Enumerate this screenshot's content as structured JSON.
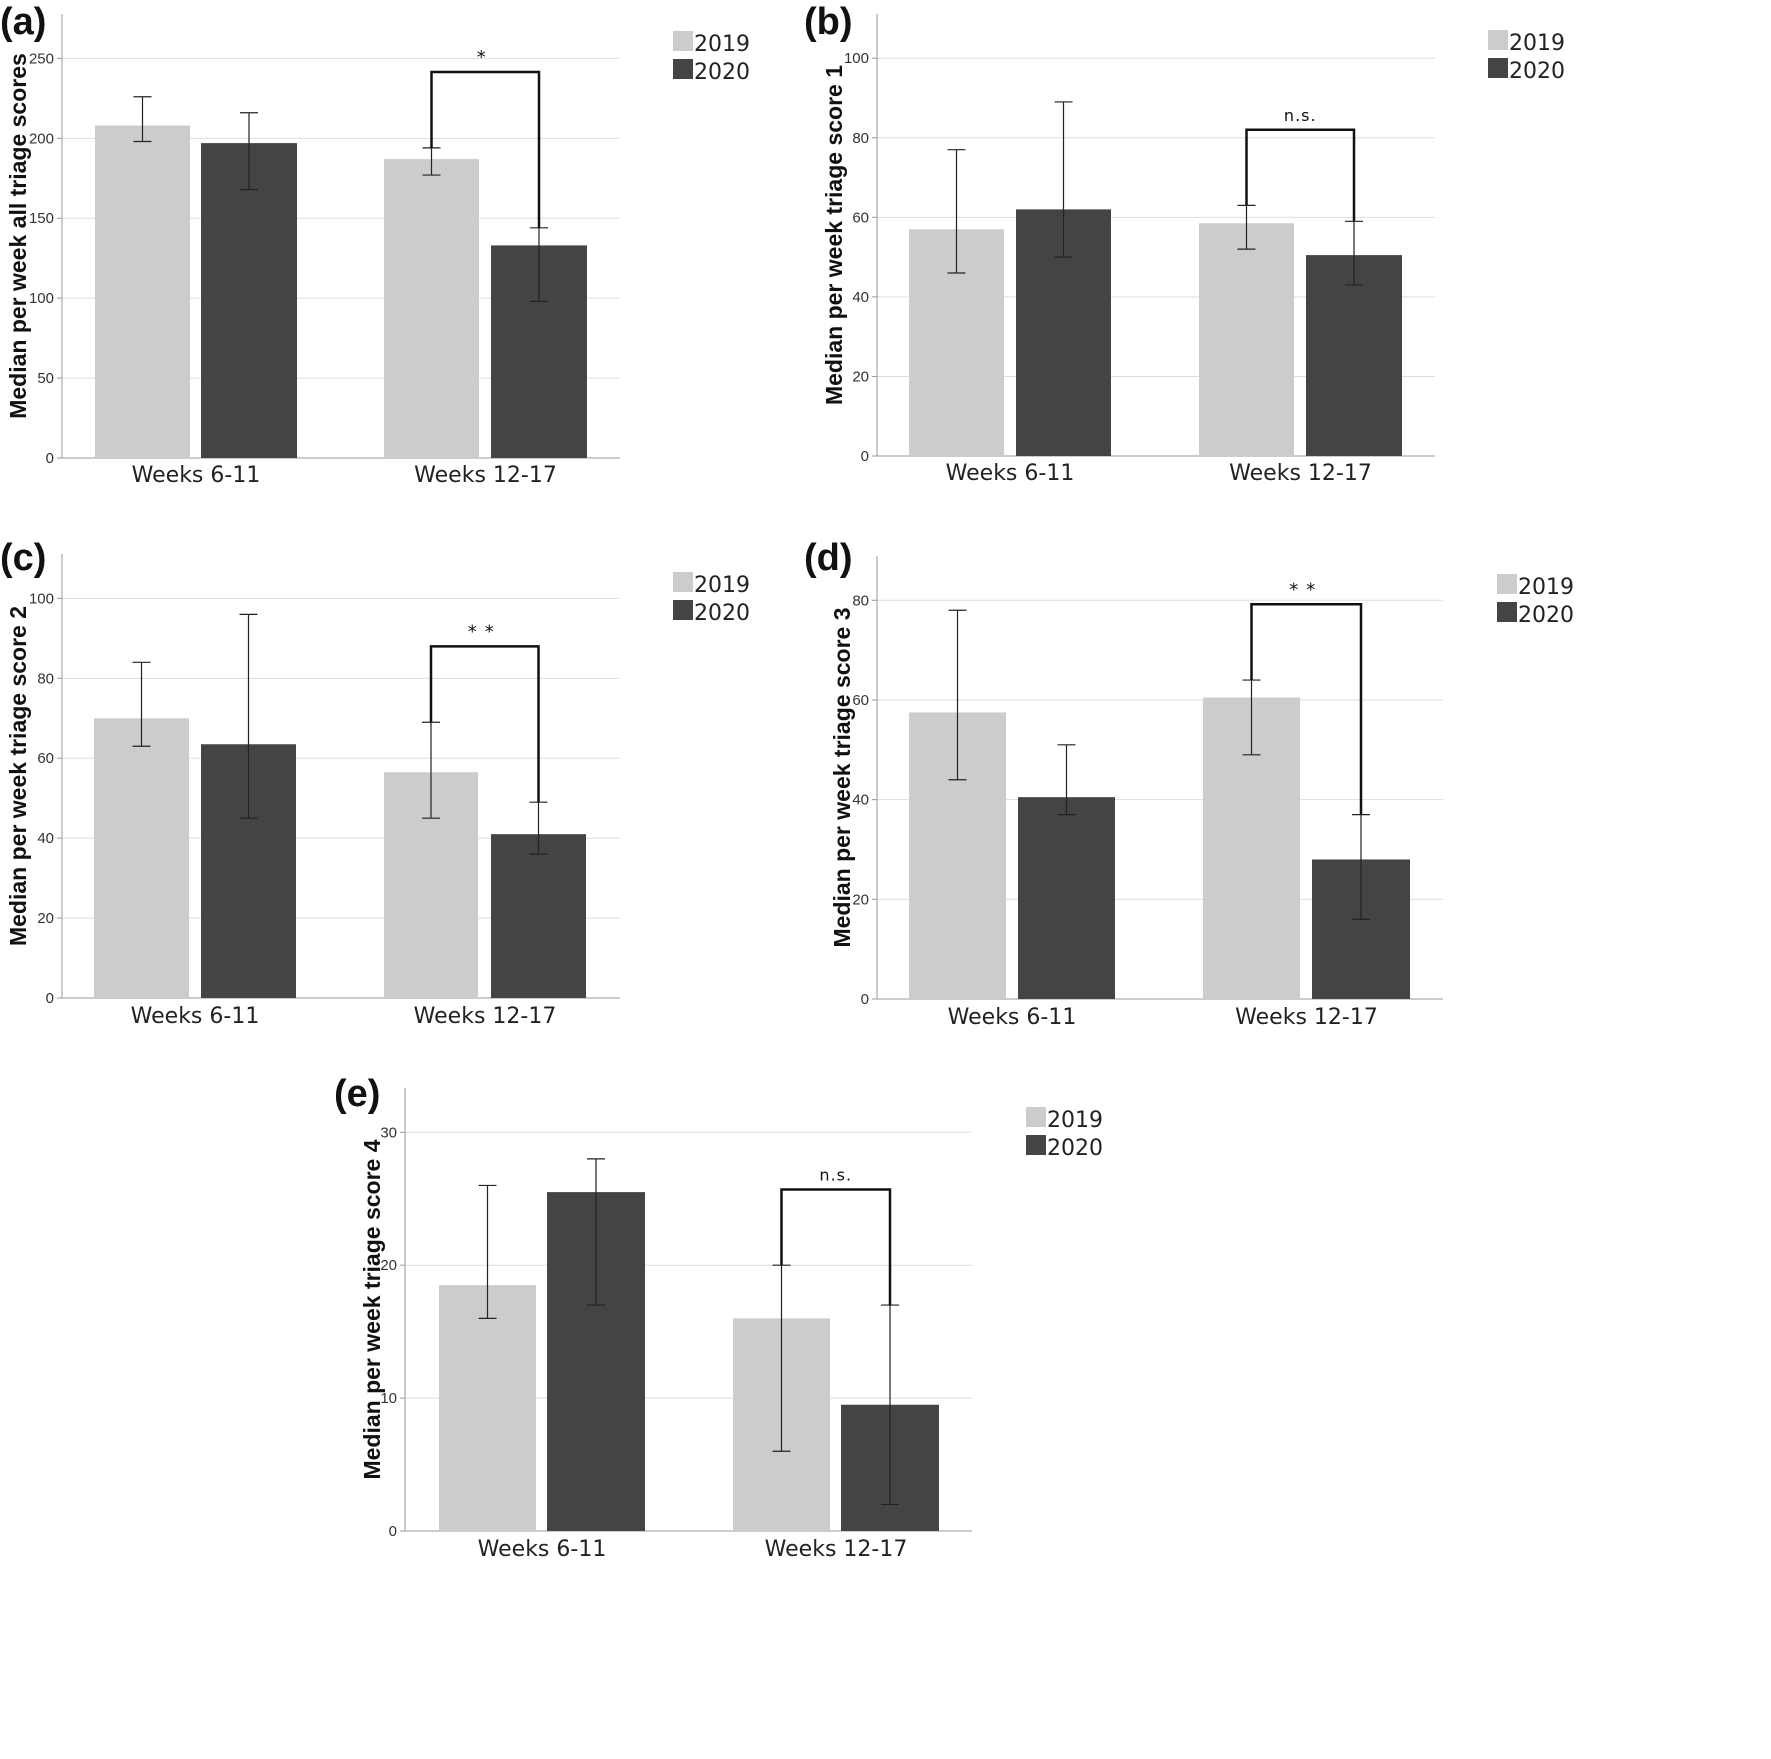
{
  "legend_labels": [
    "2019",
    "2020"
  ],
  "colors": {
    "2019": "#cccccc",
    "2020": "#444444",
    "grid": "#dddddd",
    "axis": "#999999"
  },
  "chart_data": [
    {
      "panel": "(a)",
      "type": "bar",
      "ylabel": "Median per week all triage scores",
      "categories": [
        "Weeks 6-11",
        "Weeks 12-17"
      ],
      "ylim": [
        0,
        250
      ],
      "yticks": [
        0,
        50,
        100,
        150,
        200,
        250
      ],
      "series": [
        {
          "name": "2019",
          "values": [
            208,
            187
          ],
          "error_low": [
            198,
            177
          ],
          "error_high": [
            226,
            194
          ]
        },
        {
          "name": "2020",
          "values": [
            197,
            133
          ],
          "error_low": [
            168,
            98
          ],
          "error_high": [
            216,
            144
          ]
        }
      ],
      "significance": {
        "category": "Weeks 12-17",
        "label": "*"
      },
      "grid": true,
      "legend": "top-right"
    },
    {
      "panel": "(b)",
      "type": "bar",
      "ylabel": "Median per week triage score 1",
      "categories": [
        "Weeks 6-11",
        "Weeks 12-17"
      ],
      "ylim": [
        0,
        100
      ],
      "yticks": [
        0,
        20,
        40,
        60,
        80,
        100
      ],
      "series": [
        {
          "name": "2019",
          "values": [
            57,
            58.5
          ],
          "error_low": [
            46,
            52
          ],
          "error_high": [
            77,
            63
          ]
        },
        {
          "name": "2020",
          "values": [
            62,
            50.5
          ],
          "error_low": [
            50,
            43
          ],
          "error_high": [
            89,
            59
          ]
        }
      ],
      "significance": {
        "category": "Weeks 12-17",
        "label": "n.s."
      },
      "grid": true,
      "legend": "top-right"
    },
    {
      "panel": "(c)",
      "type": "bar",
      "ylabel": "Median per week triage score 2",
      "categories": [
        "Weeks 6-11",
        "Weeks 12-17"
      ],
      "ylim": [
        0,
        100
      ],
      "yticks": [
        0,
        20,
        40,
        60,
        80,
        100
      ],
      "series": [
        {
          "name": "2019",
          "values": [
            70,
            56.5
          ],
          "error_low": [
            63,
            45
          ],
          "error_high": [
            84,
            69
          ]
        },
        {
          "name": "2020",
          "values": [
            63.5,
            41
          ],
          "error_low": [
            45,
            36
          ],
          "error_high": [
            96,
            49
          ]
        }
      ],
      "significance": {
        "category": "Weeks 12-17",
        "label": "**"
      },
      "grid": true,
      "legend": "top-right"
    },
    {
      "panel": "(d)",
      "type": "bar",
      "ylabel": "Median per week triage score 3",
      "categories": [
        "Weeks 6-11",
        "Weeks 12-17"
      ],
      "ylim": [
        0,
        80
      ],
      "yticks": [
        0,
        20,
        40,
        60,
        80
      ],
      "series": [
        {
          "name": "2019",
          "values": [
            57.5,
            60.5
          ],
          "error_low": [
            44,
            49
          ],
          "error_high": [
            78,
            64
          ]
        },
        {
          "name": "2020",
          "values": [
            40.5,
            28
          ],
          "error_low": [
            37,
            16
          ],
          "error_high": [
            51,
            37
          ]
        }
      ],
      "significance": {
        "category": "Weeks 12-17",
        "label": "**"
      },
      "grid": true,
      "legend": "top-right"
    },
    {
      "panel": "(e)",
      "type": "bar",
      "ylabel": "Median per week triage score 4",
      "categories": [
        "Weeks 6-11",
        "Weeks 12-17"
      ],
      "ylim": [
        0,
        30
      ],
      "yticks": [
        0,
        10,
        20,
        30
      ],
      "series": [
        {
          "name": "2019",
          "values": [
            18.5,
            16
          ],
          "error_low": [
            16,
            6
          ],
          "error_high": [
            26,
            20
          ]
        },
        {
          "name": "2020",
          "values": [
            25.5,
            9.5
          ],
          "error_low": [
            17,
            2
          ],
          "error_high": [
            28,
            17
          ]
        }
      ],
      "significance": {
        "category": "Weeks 12-17",
        "label": "n.s."
      },
      "grid": true,
      "legend": "top-right"
    }
  ]
}
